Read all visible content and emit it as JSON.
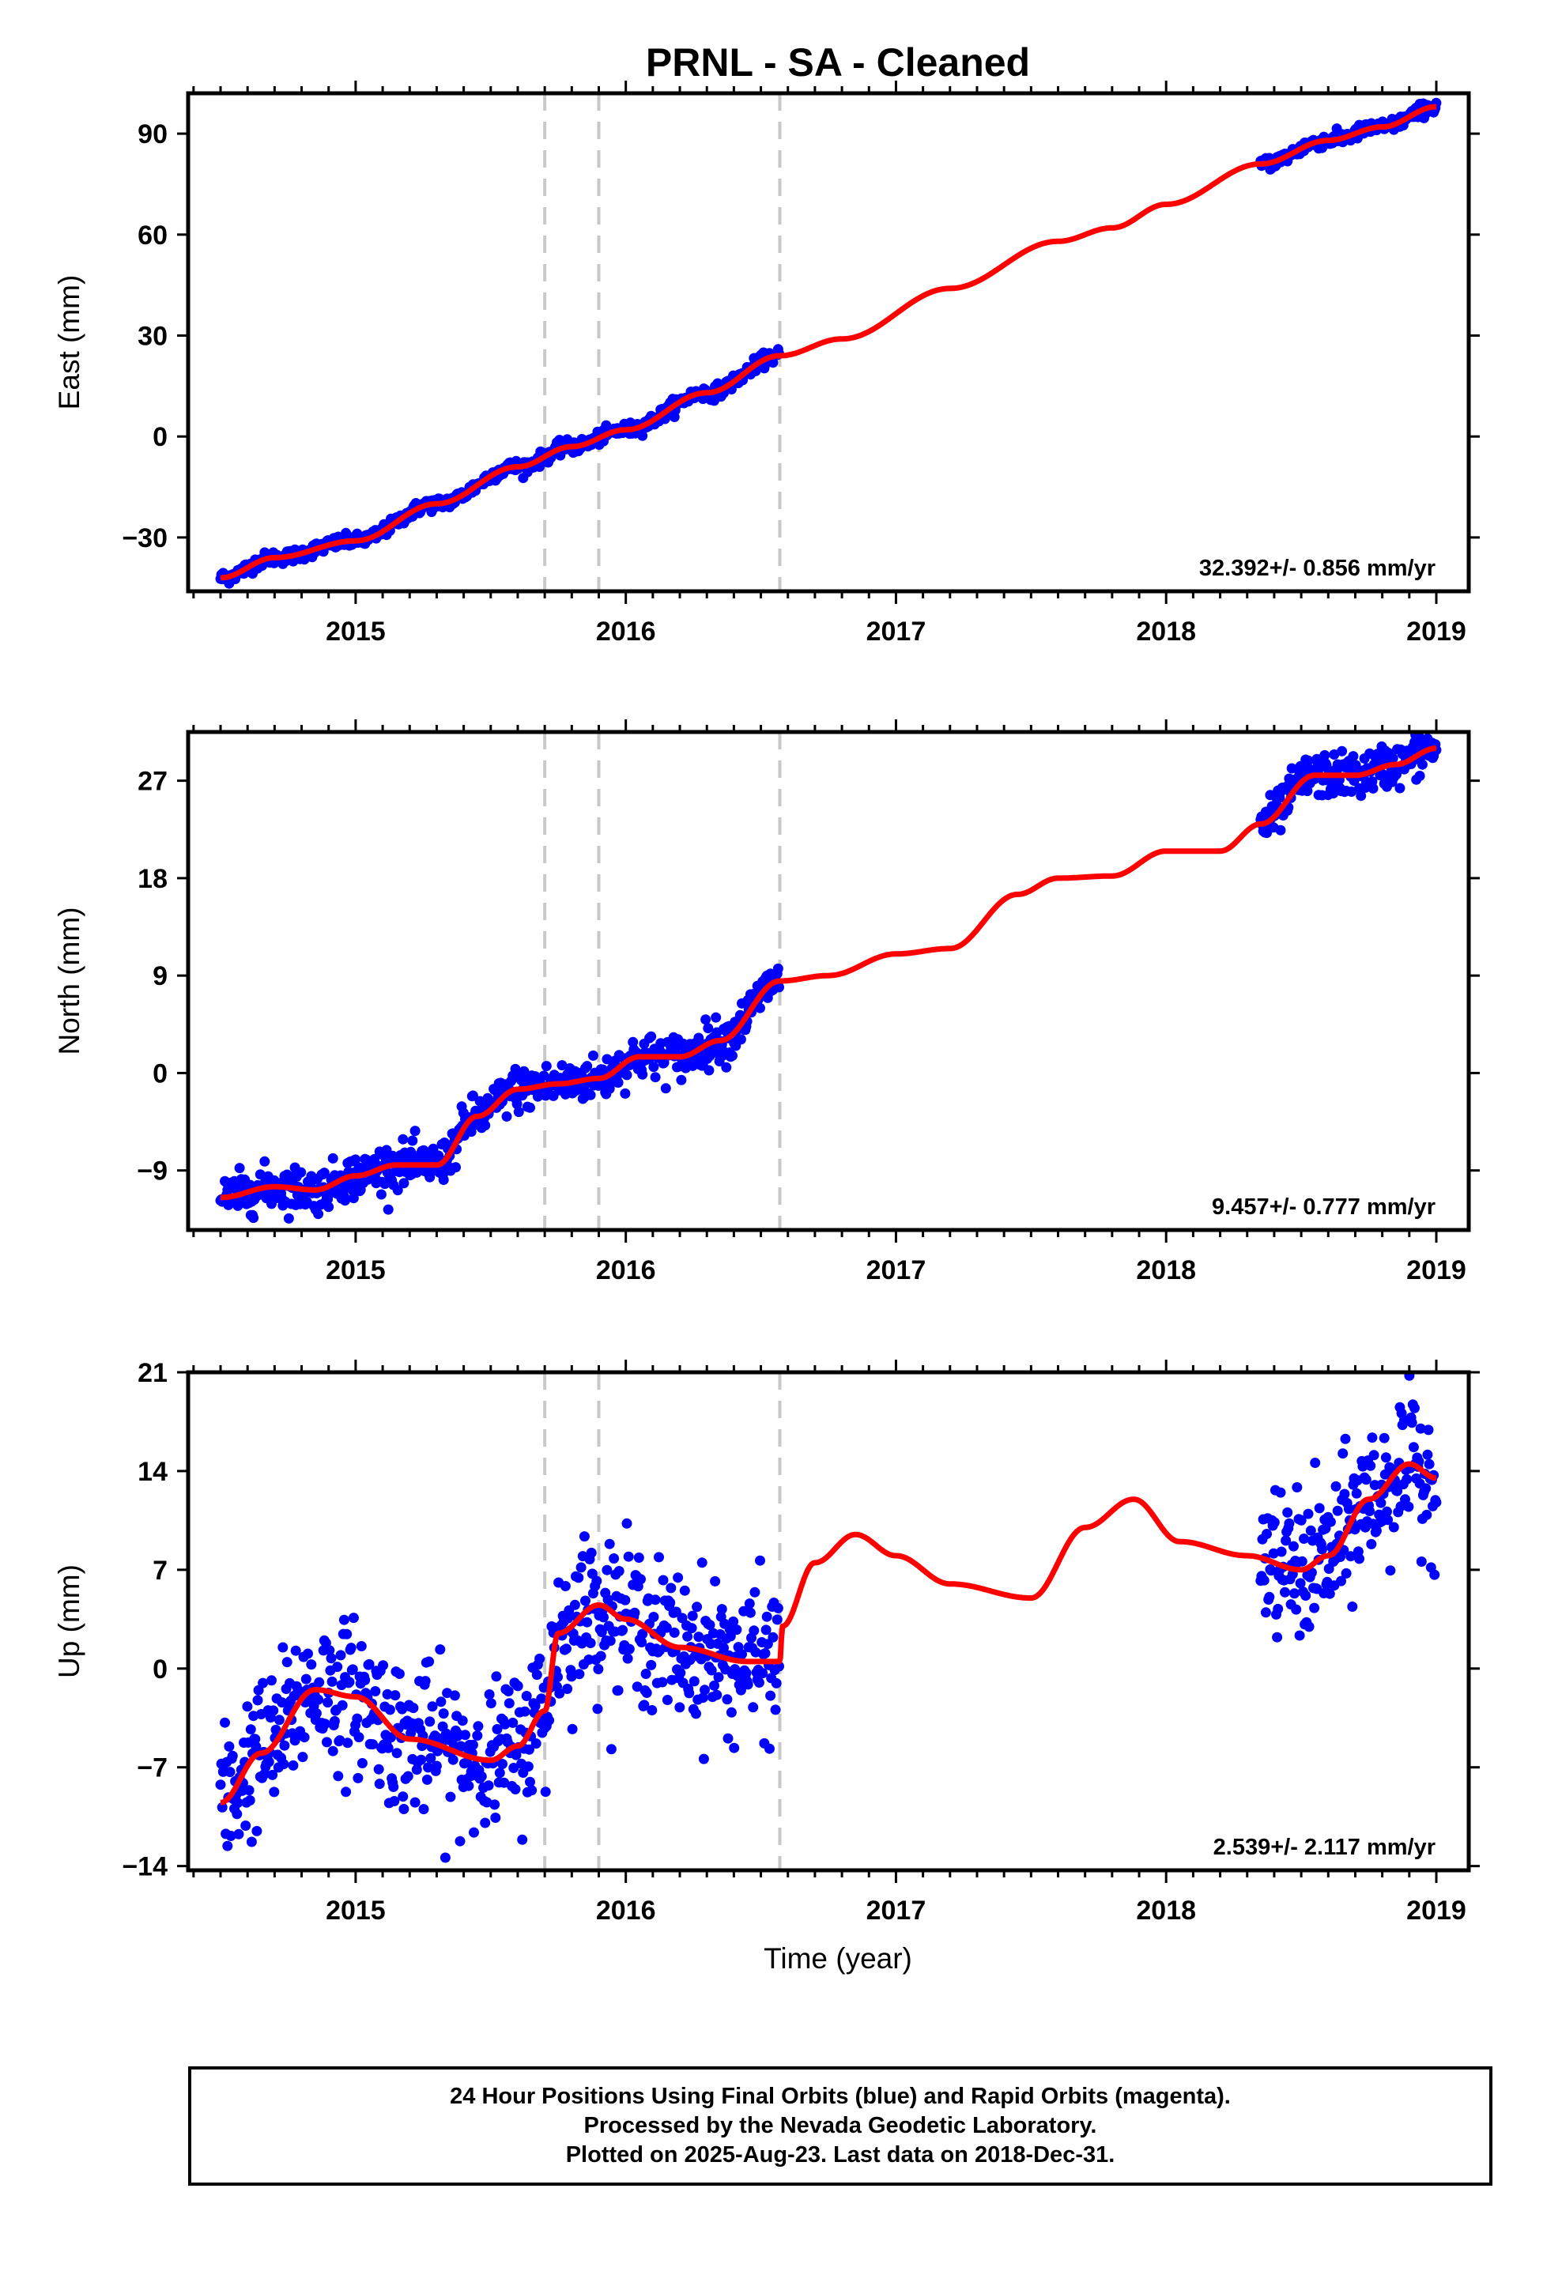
{
  "chart_data": {
    "type": "scatter",
    "title": "PRNL  - SA - Cleaned",
    "xlabel": "Time (year)",
    "xlim": [
      2014.38,
      2019.12
    ],
    "x_ticks": [
      "2015",
      "2016",
      "2017",
      "2018",
      "2019"
    ],
    "x_tick_values": [
      2015,
      2016,
      2017,
      2018,
      2019
    ],
    "vertical_dashed_lines": [
      2015.7,
      2015.9,
      2016.57
    ],
    "colors": {
      "points": "#0000ff",
      "model": "#ff0000",
      "dashed": "#c8c8c8"
    },
    "data_segments": [
      [
        2014.5,
        2016.57
      ],
      [
        2018.35,
        2019.0
      ]
    ],
    "panels": [
      {
        "name": "east",
        "ylabel": "East (mm)",
        "ylim": [
          -46,
          102
        ],
        "yticks": [
          -30,
          0,
          30,
          60,
          90
        ],
        "ytick_labels": [
          "−30",
          "0",
          "30",
          "60",
          "90"
        ],
        "rate_label": "32.392+/- 0.856 mm/yr",
        "noise": 1.0,
        "model": {
          "x": [
            2014.5,
            2014.7,
            2015.0,
            2015.3,
            2015.6,
            2015.8,
            2016.0,
            2016.3,
            2016.57,
            2016.8,
            2017.2,
            2017.6,
            2017.8,
            2018.0,
            2018.35,
            2018.6,
            2018.8,
            2019.0
          ],
          "y": [
            -42,
            -36,
            -31,
            -20,
            -9,
            -3,
            2,
            13,
            24,
            29,
            44,
            58,
            62,
            69,
            81,
            88,
            92,
            98
          ]
        }
      },
      {
        "name": "north",
        "ylabel": "North (mm)",
        "ylim": [
          -14.5,
          31.5
        ],
        "yticks": [
          -9,
          0,
          9,
          18,
          27
        ],
        "ytick_labels": [
          "−9",
          "0",
          "9",
          "18",
          "27"
        ],
        "rate_label": "9.457+/- 0.777 mm/yr",
        "noise": 1.0,
        "model": {
          "x": [
            2014.5,
            2014.7,
            2014.85,
            2015.0,
            2015.15,
            2015.3,
            2015.45,
            2015.6,
            2015.75,
            2015.9,
            2016.05,
            2016.2,
            2016.35,
            2016.57,
            2016.75,
            2017.0,
            2017.2,
            2017.45,
            2017.6,
            2017.8,
            2018.0,
            2018.2,
            2018.35,
            2018.55,
            2018.7,
            2018.85,
            2019.0
          ],
          "y": [
            -11.5,
            -10.5,
            -10.8,
            -9.5,
            -8.5,
            -8.5,
            -4,
            -1.5,
            -1,
            -0.5,
            1.5,
            1.5,
            3,
            8.5,
            9,
            11,
            11.5,
            16.5,
            18,
            18.2,
            20.5,
            20.5,
            23,
            27.5,
            27.5,
            28.5,
            30
          ]
        }
      },
      {
        "name": "up",
        "ylabel": "Up (mm)",
        "ylim": [
          -14.3,
          21
        ],
        "yticks": [
          -14,
          -7,
          0,
          7,
          14,
          21
        ],
        "ytick_labels": [
          "−14",
          "−7",
          "0",
          "7",
          "14",
          "21"
        ],
        "rate_label": "2.539+/- 2.117 mm/yr",
        "noise": 2.6,
        "model": {
          "x": [
            2014.5,
            2014.65,
            2014.85,
            2015.0,
            2015.2,
            2015.5,
            2015.6,
            2015.7,
            2015.75,
            2015.9,
            2016.0,
            2016.2,
            2016.45,
            2016.57,
            2016.58,
            2016.7,
            2016.85,
            2017.0,
            2017.2,
            2017.5,
            2017.7,
            2017.88,
            2018.05,
            2018.3,
            2018.5,
            2018.6,
            2018.75,
            2018.9,
            2019.0
          ],
          "y": [
            -9.5,
            -6,
            -1.5,
            -2,
            -5,
            -6.5,
            -5.5,
            -3,
            2.5,
            4.5,
            3.5,
            1.5,
            0.5,
            0.5,
            3,
            7.5,
            9.5,
            8,
            6,
            5,
            10,
            12,
            9,
            8,
            7,
            8,
            12,
            14.5,
            13.5
          ]
        }
      }
    ],
    "footer": [
      "24 Hour Positions Using Final Orbits (blue) and Rapid Orbits (magenta).",
      "Processed by the Nevada Geodetic Laboratory.",
      "Plotted on 2025-Aug-23. Last data on 2018-Dec-31."
    ]
  }
}
